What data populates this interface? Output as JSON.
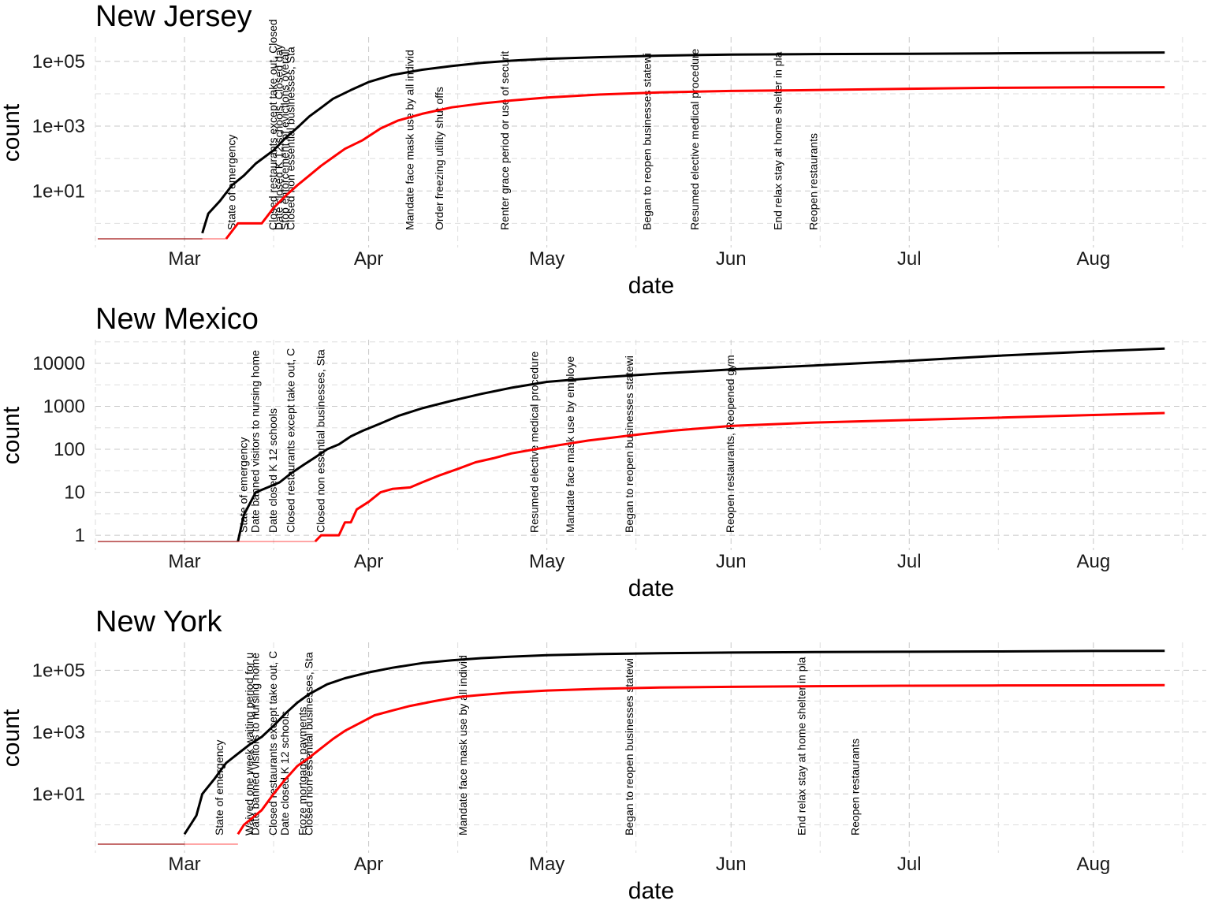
{
  "chart_data": [
    {
      "type": "line",
      "title": "New Jersey",
      "xlabel": "date",
      "ylabel": "count",
      "yscale": "log10",
      "x_ticks": [
        "Mar",
        "Apr",
        "May",
        "Jun",
        "Jul",
        "Aug"
      ],
      "y_ticks": [
        "1e+01",
        "1e+03",
        "1e+05"
      ],
      "grid": true,
      "series": [
        {
          "color": "#000000",
          "points": [
            [
              "2020-03-04",
              0.5
            ],
            [
              "2020-03-05",
              2
            ],
            [
              "2020-03-07",
              5
            ],
            [
              "2020-03-09",
              15
            ],
            [
              "2020-03-11",
              30
            ],
            [
              "2020-03-13",
              70
            ],
            [
              "2020-03-16",
              180
            ],
            [
              "2020-03-18",
              430
            ],
            [
              "2020-03-20",
              900
            ],
            [
              "2020-03-22",
              2000
            ],
            [
              "2020-03-24",
              3700
            ],
            [
              "2020-03-26",
              7000
            ],
            [
              "2020-03-29",
              13000
            ],
            [
              "2020-04-01",
              23000
            ],
            [
              "2020-04-05",
              38000
            ],
            [
              "2020-04-10",
              55000
            ],
            [
              "2020-04-15",
              72000
            ],
            [
              "2020-04-20",
              90000
            ],
            [
              "2020-04-25",
              105000
            ],
            [
              "2020-05-01",
              120000
            ],
            [
              "2020-05-10",
              135000
            ],
            [
              "2020-05-20",
              150000
            ],
            [
              "2020-06-01",
              162000
            ],
            [
              "2020-06-15",
              168000
            ],
            [
              "2020-07-01",
              172000
            ],
            [
              "2020-07-15",
              176000
            ],
            [
              "2020-08-01",
              183000
            ],
            [
              "2020-08-13",
              188000
            ]
          ]
        },
        {
          "color": "#ff0000",
          "points": [
            [
              "2020-03-08",
              0.3
            ],
            [
              "2020-03-10",
              1
            ],
            [
              "2020-03-14",
              1
            ],
            [
              "2020-03-16",
              3
            ],
            [
              "2020-03-18",
              7
            ],
            [
              "2020-03-20",
              15
            ],
            [
              "2020-03-22",
              30
            ],
            [
              "2020-03-24",
              60
            ],
            [
              "2020-03-26",
              110
            ],
            [
              "2020-03-28",
              200
            ],
            [
              "2020-03-31",
              370
            ],
            [
              "2020-04-03",
              850
            ],
            [
              "2020-04-06",
              1500
            ],
            [
              "2020-04-10",
              2400
            ],
            [
              "2020-04-15",
              3800
            ],
            [
              "2020-04-20",
              5000
            ],
            [
              "2020-04-25",
              6200
            ],
            [
              "2020-05-01",
              7600
            ],
            [
              "2020-05-10",
              9500
            ],
            [
              "2020-05-20",
              11000
            ],
            [
              "2020-06-01",
              12200
            ],
            [
              "2020-06-15",
              13000
            ],
            [
              "2020-07-01",
              14300
            ],
            [
              "2020-07-15",
              15300
            ],
            [
              "2020-08-01",
              15800
            ],
            [
              "2020-08-13",
              16000
            ]
          ]
        }
      ],
      "events": [
        {
          "date": "2020-03-09",
          "label": "State of emergency"
        },
        {
          "date": "2020-03-16",
          "label": "Closed restaurants except take out, Closed"
        },
        {
          "date": "2020-03-17",
          "label": "Date closed K 12 schools, Closed day"
        },
        {
          "date": "2020-03-18",
          "label": "Stop enforcement of evictions overall"
        },
        {
          "date": "2020-03-19",
          "label": "Closed non essential businesses, Sta"
        },
        {
          "date": "2020-04-08",
          "label": "Mandate face mask use by all individ"
        },
        {
          "date": "2020-04-13",
          "label": "Order freezing utility shut offs"
        },
        {
          "date": "2020-04-24",
          "label": "Renter grace period or use of securit"
        },
        {
          "date": "2020-05-18",
          "label": "Began to reopen businesses statewi"
        },
        {
          "date": "2020-05-26",
          "label": "Resumed elective medical procedure"
        },
        {
          "date": "2020-06-09",
          "label": "End relax stay at home shelter in pla"
        },
        {
          "date": "2020-06-15",
          "label": "Reopen restaurants"
        }
      ]
    },
    {
      "type": "line",
      "title": "New Mexico",
      "xlabel": "date",
      "ylabel": "count",
      "yscale": "log10",
      "x_ticks": [
        "Mar",
        "Apr",
        "May",
        "Jun",
        "Jul",
        "Aug"
      ],
      "y_ticks": [
        "1",
        "10",
        "100",
        "1000",
        "10000"
      ],
      "grid": true,
      "series": [
        {
          "color": "#000000",
          "points": [
            [
              "2020-03-10",
              0.6
            ],
            [
              "2020-03-11",
              3
            ],
            [
              "2020-03-13",
              10
            ],
            [
              "2020-03-15",
              13
            ],
            [
              "2020-03-17",
              17
            ],
            [
              "2020-03-19",
              28
            ],
            [
              "2020-03-21",
              43
            ],
            [
              "2020-03-23",
              65
            ],
            [
              "2020-03-25",
              100
            ],
            [
              "2020-03-27",
              130
            ],
            [
              "2020-03-29",
              200
            ],
            [
              "2020-03-31",
              270
            ],
            [
              "2020-04-03",
              400
            ],
            [
              "2020-04-06",
              600
            ],
            [
              "2020-04-10",
              900
            ],
            [
              "2020-04-15",
              1350
            ],
            [
              "2020-04-20",
              1950
            ],
            [
              "2020-04-25",
              2700
            ],
            [
              "2020-05-01",
              3700
            ],
            [
              "2020-05-10",
              4700
            ],
            [
              "2020-05-20",
              5800
            ],
            [
              "2020-06-01",
              7200
            ],
            [
              "2020-06-15",
              8900
            ],
            [
              "2020-07-01",
              11500
            ],
            [
              "2020-07-15",
              14800
            ],
            [
              "2020-08-01",
              19000
            ],
            [
              "2020-08-13",
              22000
            ]
          ]
        },
        {
          "color": "#ff0000",
          "points": [
            [
              "2020-03-23",
              0.6
            ],
            [
              "2020-03-24",
              1
            ],
            [
              "2020-03-27",
              1
            ],
            [
              "2020-03-28",
              2
            ],
            [
              "2020-03-29",
              2
            ],
            [
              "2020-03-30",
              4
            ],
            [
              "2020-04-01",
              6
            ],
            [
              "2020-04-03",
              10
            ],
            [
              "2020-04-05",
              12
            ],
            [
              "2020-04-08",
              13
            ],
            [
              "2020-04-10",
              17
            ],
            [
              "2020-04-13",
              25
            ],
            [
              "2020-04-16",
              35
            ],
            [
              "2020-04-19",
              50
            ],
            [
              "2020-04-22",
              62
            ],
            [
              "2020-04-25",
              80
            ],
            [
              "2020-04-29",
              100
            ],
            [
              "2020-05-03",
              125
            ],
            [
              "2020-05-08",
              160
            ],
            [
              "2020-05-15",
              210
            ],
            [
              "2020-05-22",
              270
            ],
            [
              "2020-06-01",
              350
            ],
            [
              "2020-06-15",
              420
            ],
            [
              "2020-07-01",
              480
            ],
            [
              "2020-07-15",
              540
            ],
            [
              "2020-08-01",
              630
            ],
            [
              "2020-08-13",
              700
            ]
          ]
        }
      ],
      "events": [
        {
          "date": "2020-03-11",
          "label": "State of emergency"
        },
        {
          "date": "2020-03-13",
          "label": "Date banned visitors to nursing home"
        },
        {
          "date": "2020-03-16",
          "label": "Date closed K 12 schools"
        },
        {
          "date": "2020-03-19",
          "label": "Closed restaurants except take out, C"
        },
        {
          "date": "2020-03-24",
          "label": "Closed non essential businesses, Sta"
        },
        {
          "date": "2020-04-29",
          "label": "Resumed elective medical procedure"
        },
        {
          "date": "2020-05-05",
          "label": "Mandate face mask use by employe"
        },
        {
          "date": "2020-05-15",
          "label": "Began to reopen businesses statewi"
        },
        {
          "date": "2020-06-01",
          "label": "Reopen restaurants, Reopened gym"
        }
      ]
    },
    {
      "type": "line",
      "title": "New York",
      "xlabel": "date",
      "ylabel": "count",
      "yscale": "log10",
      "x_ticks": [
        "Mar",
        "Apr",
        "May",
        "Jun",
        "Jul",
        "Aug"
      ],
      "y_ticks": [
        "1e+01",
        "1e+03",
        "1e+05"
      ],
      "grid": true,
      "series": [
        {
          "color": "#000000",
          "points": [
            [
              "2020-03-01",
              0.5
            ],
            [
              "2020-03-02",
              1
            ],
            [
              "2020-03-03",
              2
            ],
            [
              "2020-03-04",
              10
            ],
            [
              "2020-03-06",
              30
            ],
            [
              "2020-03-08",
              100
            ],
            [
              "2020-03-10",
              200
            ],
            [
              "2020-03-12",
              400
            ],
            [
              "2020-03-14",
              700
            ],
            [
              "2020-03-16",
              1600
            ],
            [
              "2020-03-18",
              4000
            ],
            [
              "2020-03-20",
              9000
            ],
            [
              "2020-03-22",
              17000
            ],
            [
              "2020-03-25",
              35000
            ],
            [
              "2020-03-28",
              55000
            ],
            [
              "2020-04-01",
              85000
            ],
            [
              "2020-04-05",
              120000
            ],
            [
              "2020-04-10",
              170000
            ],
            [
              "2020-04-15",
              210000
            ],
            [
              "2020-04-20",
              245000
            ],
            [
              "2020-04-25",
              275000
            ],
            [
              "2020-05-01",
              305000
            ],
            [
              "2020-05-10",
              335000
            ],
            [
              "2020-05-20",
              355000
            ],
            [
              "2020-06-01",
              373000
            ],
            [
              "2020-06-15",
              385000
            ],
            [
              "2020-07-01",
              395000
            ],
            [
              "2020-07-15",
              405000
            ],
            [
              "2020-08-01",
              418000
            ],
            [
              "2020-08-13",
              425000
            ]
          ]
        },
        {
          "color": "#ff0000",
          "points": [
            [
              "2020-03-10",
              0.5
            ],
            [
              "2020-03-11",
              1
            ],
            [
              "2020-03-14",
              3
            ],
            [
              "2020-03-16",
              10
            ],
            [
              "2020-03-18",
              30
            ],
            [
              "2020-03-20",
              80
            ],
            [
              "2020-03-22",
              150
            ],
            [
              "2020-03-24",
              300
            ],
            [
              "2020-03-26",
              600
            ],
            [
              "2020-03-28",
              1100
            ],
            [
              "2020-03-31",
              2200
            ],
            [
              "2020-04-02",
              3500
            ],
            [
              "2020-04-05",
              5000
            ],
            [
              "2020-04-08",
              7000
            ],
            [
              "2020-04-12",
              10000
            ],
            [
              "2020-04-16",
              13500
            ],
            [
              "2020-04-20",
              16000
            ],
            [
              "2020-04-25",
              19000
            ],
            [
              "2020-05-01",
              22000
            ],
            [
              "2020-05-10",
              25000
            ],
            [
              "2020-05-20",
              27500
            ],
            [
              "2020-06-01",
              29000
            ],
            [
              "2020-06-15",
              30500
            ],
            [
              "2020-07-01",
              31500
            ],
            [
              "2020-07-15",
              32000
            ],
            [
              "2020-08-01",
              32500
            ],
            [
              "2020-08-13",
              32800
            ]
          ]
        }
      ],
      "events": [
        {
          "date": "2020-03-07",
          "label": "State of emergency"
        },
        {
          "date": "2020-03-12",
          "label": "Waived one week waiting period for u"
        },
        {
          "date": "2020-03-13",
          "label": "Date banned visitors to nursing home"
        },
        {
          "date": "2020-03-16",
          "label": "Closed restaurants except take out, C"
        },
        {
          "date": "2020-03-18",
          "label": "Date closed K 12 schools"
        },
        {
          "date": "2020-03-21",
          "label": "Froze mortgage payments"
        },
        {
          "date": "2020-03-22",
          "label": "Closed non essential businesses, Sta"
        },
        {
          "date": "2020-04-17",
          "label": "Mandate face mask use by all individ"
        },
        {
          "date": "2020-05-15",
          "label": "Began to reopen businesses statewi"
        },
        {
          "date": "2020-06-13",
          "label": "End relax stay at home shelter in pla"
        },
        {
          "date": "2020-06-22",
          "label": "Reopen restaurants"
        }
      ]
    }
  ]
}
